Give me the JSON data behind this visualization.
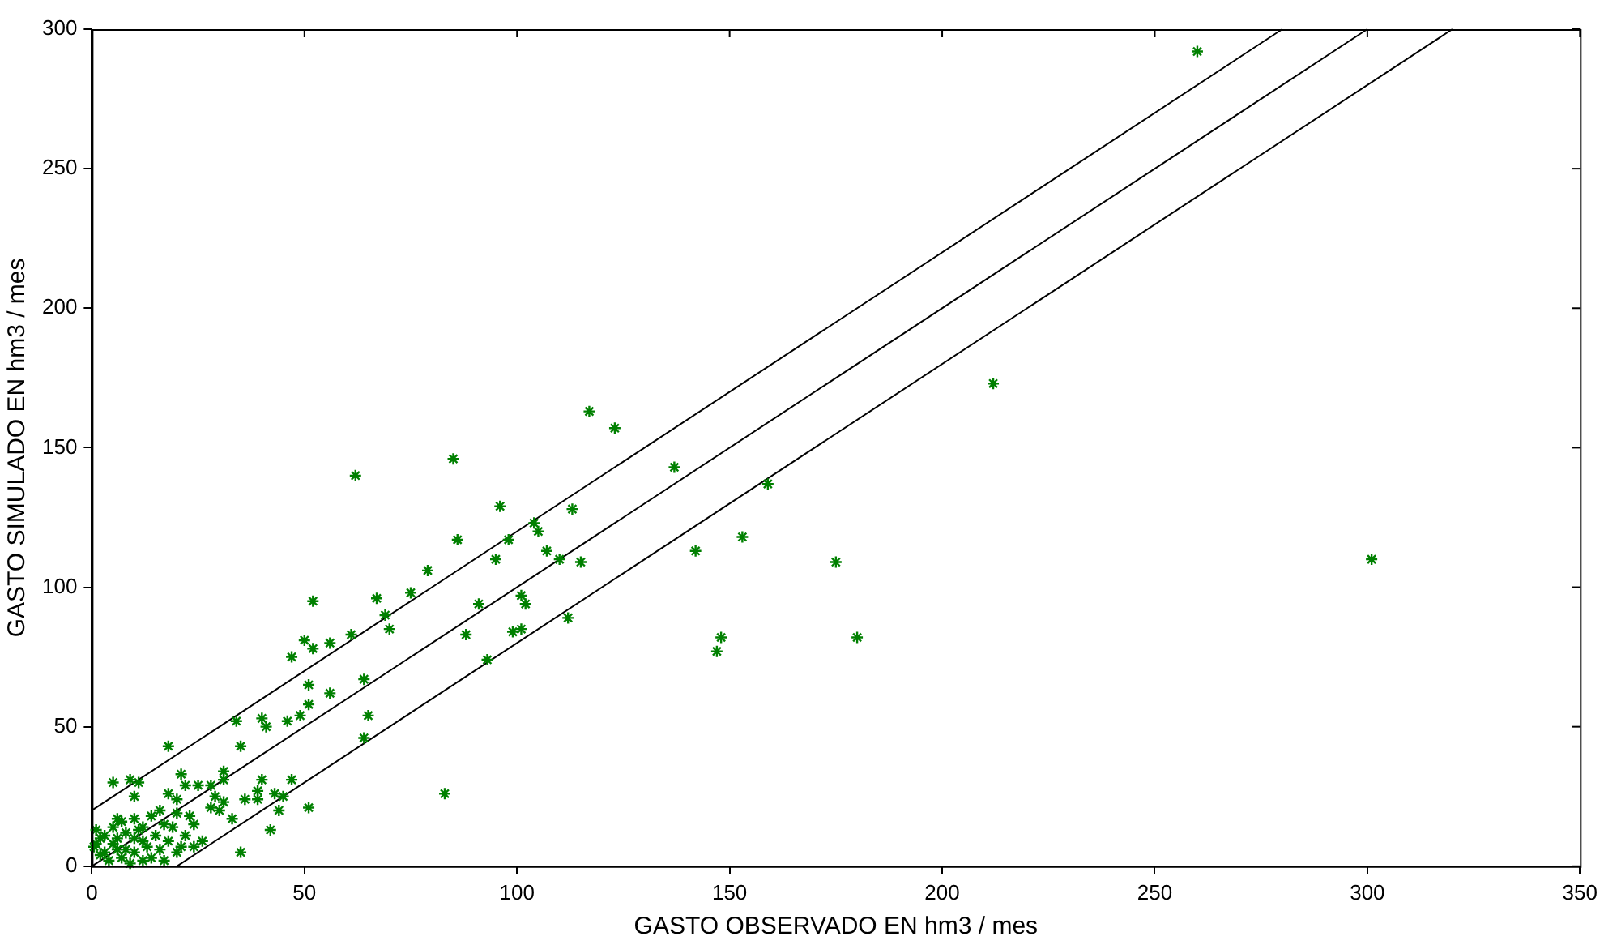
{
  "chart_data": {
    "type": "scatter",
    "xlabel": "GASTO OBSERVADO EN hm3 / mes",
    "ylabel": "GASTO SIMULADO EN hm3 / mes",
    "xlim": [
      0,
      350
    ],
    "ylim": [
      0,
      300
    ],
    "xticks": [
      0,
      50,
      100,
      150,
      200,
      250,
      300,
      350
    ],
    "yticks": [
      0,
      50,
      100,
      150,
      200,
      250,
      300
    ],
    "grid": false,
    "series": [
      {
        "color": "#008000",
        "marker": "cross",
        "x": [
          260,
          212,
          301,
          137,
          159,
          153,
          142,
          175,
          148,
          147,
          180,
          117,
          123,
          62,
          85,
          96,
          86,
          98,
          104,
          105,
          113,
          95,
          107,
          110,
          115,
          79,
          75,
          67,
          52,
          69,
          70,
          91,
          101,
          102,
          112,
          50,
          52,
          56,
          61,
          47,
          88,
          99,
          101,
          93,
          51,
          56,
          64,
          83,
          34,
          40,
          41,
          46,
          49,
          51,
          18,
          35,
          65,
          64,
          5,
          9,
          11,
          21,
          22,
          25,
          28,
          31,
          31,
          18,
          20,
          10,
          29,
          31,
          40,
          39,
          39,
          36,
          43,
          47,
          45,
          44,
          30,
          28,
          33,
          42,
          51,
          35,
          23,
          6,
          10,
          12,
          17,
          20,
          24,
          26,
          24,
          21,
          1,
          2,
          0.5,
          3,
          5,
          7,
          8,
          10,
          12,
          14,
          15,
          16,
          4,
          6,
          9,
          11,
          13,
          2,
          17,
          18,
          19,
          20,
          22,
          8,
          5,
          1,
          3,
          7,
          14,
          16,
          12,
          10,
          6
        ],
        "values": [
          292,
          173,
          110,
          143,
          137,
          118,
          113,
          109,
          82,
          77,
          82,
          163,
          157,
          140,
          146,
          129,
          117,
          117,
          123,
          120,
          128,
          110,
          113,
          110,
          109,
          106,
          98,
          96,
          95,
          90,
          85,
          94,
          97,
          94,
          89,
          81,
          78,
          80,
          83,
          75,
          83,
          84,
          85,
          74,
          65,
          62,
          67,
          26,
          52,
          53,
          50,
          52,
          54,
          58,
          43,
          43,
          54,
          46,
          30,
          31,
          30,
          33,
          29,
          29,
          29,
          34,
          31,
          26,
          24,
          25,
          25,
          23,
          31,
          27,
          24,
          24,
          26,
          31,
          25,
          20,
          20,
          21,
          17,
          13,
          21,
          5,
          18,
          17,
          17,
          14,
          15,
          19,
          15,
          9,
          7,
          7,
          13,
          10,
          7,
          5,
          8,
          3,
          12,
          5,
          9,
          3,
          11,
          6,
          2,
          10,
          1,
          13,
          7,
          4,
          2,
          9,
          14,
          5,
          11,
          6,
          14,
          8,
          11,
          16,
          18,
          20,
          2,
          10,
          6
        ]
      },
      {
        "type": "line",
        "color": "#000000",
        "marker": "none",
        "line_style": "solid",
        "x": [
          0,
          280
        ],
        "values": [
          20,
          300
        ]
      },
      {
        "type": "line",
        "color": "#000000",
        "marker": "none",
        "line_style": "solid",
        "x": [
          0,
          300
        ],
        "values": [
          0,
          300
        ]
      },
      {
        "type": "line",
        "color": "#000000",
        "marker": "none",
        "line_style": "solid",
        "x": [
          20,
          320
        ],
        "values": [
          0,
          300
        ]
      }
    ]
  }
}
